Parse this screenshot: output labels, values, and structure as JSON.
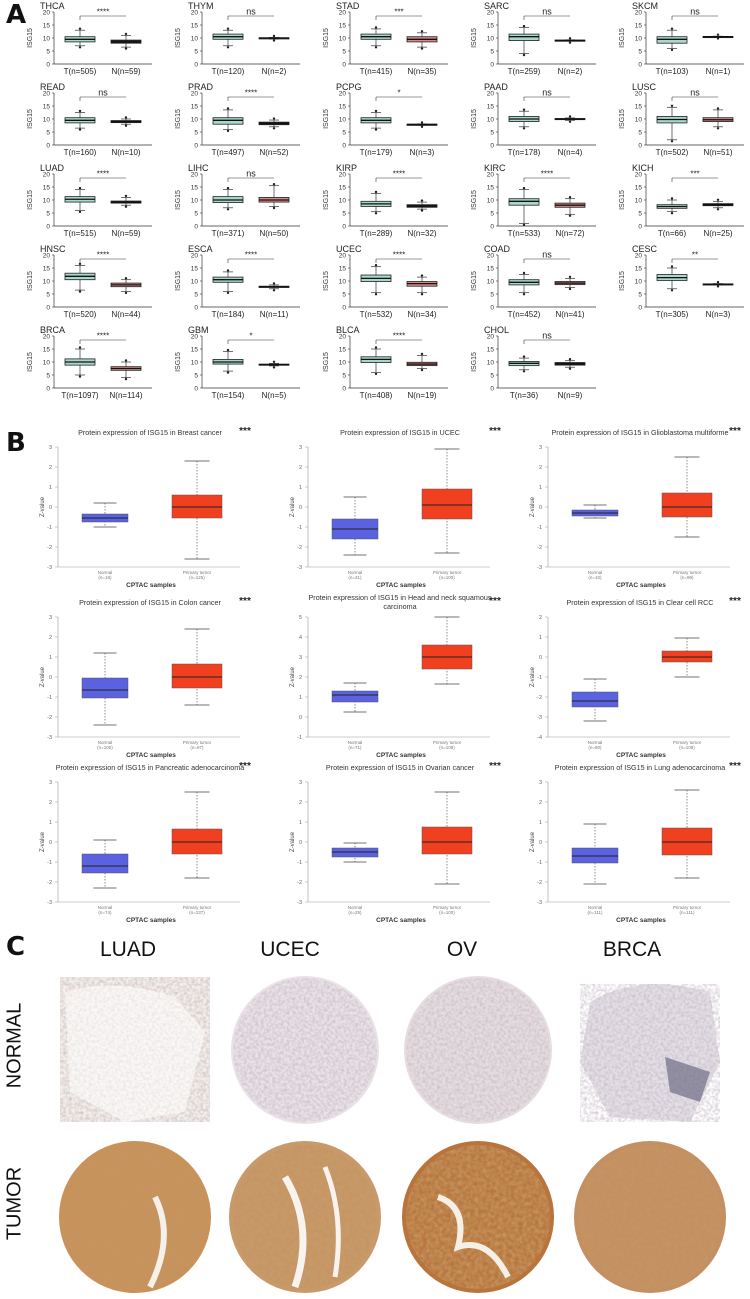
{
  "panel_labels": {
    "a": "A",
    "b": "B",
    "c": "C"
  },
  "panelA": {
    "ylabel": "ISG15",
    "yticks": [
      0,
      5,
      10,
      15,
      20
    ],
    "colors": {
      "tumor": "#a8d8cc",
      "normal": "#d98a8a",
      "normal_small": "#222222"
    },
    "plots": [
      {
        "name": "THCA",
        "tumor_label": "T(n=505)",
        "normal_label": "N(n=59)",
        "sig": "****",
        "t": [
          7,
          8.5,
          9.5,
          10.5,
          13
        ],
        "n": [
          6.5,
          8,
          8.5,
          9.2,
          11
        ]
      },
      {
        "name": "THYM",
        "tumor_label": "T(n=120)",
        "normal_label": "N(n=2)",
        "sig": "ns",
        "t": [
          7,
          9.5,
          10.5,
          11.5,
          13
        ],
        "n": [
          9.6,
          9.8,
          10,
          10.1,
          10.2
        ]
      },
      {
        "name": "STAD",
        "tumor_label": "T(n=415)",
        "normal_label": "N(n=35)",
        "sig": "***",
        "t": [
          7,
          9.5,
          10.5,
          11.5,
          13.5
        ],
        "n": [
          6.5,
          8.5,
          9.5,
          10.5,
          12
        ]
      },
      {
        "name": "SARC",
        "tumor_label": "T(n=259)",
        "normal_label": "N(n=2)",
        "sig": "ns",
        "t": [
          4,
          9,
          10.5,
          11.5,
          14
        ],
        "n": [
          8.8,
          9,
          9.1,
          9.2,
          9.3
        ]
      },
      {
        "name": "SKCM",
        "tumor_label": "T(n=103)",
        "normal_label": "N(n=1)",
        "sig": "ns",
        "t": [
          6,
          8,
          9.5,
          10.5,
          13
        ],
        "n": [
          10.4,
          10.5,
          10.5,
          10.6,
          10.7
        ]
      },
      {
        "name": "READ",
        "tumor_label": "T(n=160)",
        "normal_label": "N(n=10)",
        "sig": "ns",
        "t": [
          6.5,
          8.5,
          9.5,
          10.5,
          12.5
        ],
        "n": [
          8,
          8.6,
          9,
          9.4,
          10
        ]
      },
      {
        "name": "PRAD",
        "tumor_label": "T(n=497)",
        "normal_label": "N(n=52)",
        "sig": "****",
        "t": [
          6,
          8,
          9.5,
          10.5,
          13.5
        ],
        "n": [
          7,
          7.8,
          8.3,
          8.8,
          9.6
        ]
      },
      {
        "name": "PCPG",
        "tumor_label": "T(n=179)",
        "normal_label": "N(n=3)",
        "sig": "*",
        "t": [
          6.5,
          8.5,
          9.5,
          10.5,
          12.5
        ],
        "n": [
          7.6,
          7.8,
          7.9,
          8,
          8.1
        ]
      },
      {
        "name": "PAAD",
        "tumor_label": "T(n=178)",
        "normal_label": "N(n=4)",
        "sig": "ns",
        "t": [
          7,
          9,
          10,
          11,
          13
        ],
        "n": [
          9.5,
          9.8,
          10,
          10.2,
          10.4
        ]
      },
      {
        "name": "LUSC",
        "tumor_label": "T(n=502)",
        "normal_label": "N(n=51)",
        "sig": "ns",
        "t": [
          2,
          8.5,
          9.8,
          11,
          14.5
        ],
        "n": [
          7,
          9,
          9.7,
          10.5,
          13.5
        ]
      },
      {
        "name": "LUAD",
        "tumor_label": "T(n=515)",
        "normal_label": "N(n=59)",
        "sig": "****",
        "t": [
          6,
          9.2,
          10.3,
          11.3,
          14
        ],
        "n": [
          8,
          8.8,
          9.2,
          9.6,
          11
        ]
      },
      {
        "name": "LIHC",
        "tumor_label": "T(n=371)",
        "normal_label": "N(n=50)",
        "sig": "ns",
        "t": [
          7,
          9,
          10,
          11.3,
          14
        ],
        "n": [
          7.5,
          9.2,
          10,
          11,
          15.5
        ]
      },
      {
        "name": "KIRP",
        "tumor_label": "T(n=289)",
        "normal_label": "N(n=32)",
        "sig": "****",
        "t": [
          5.5,
          7.5,
          8.5,
          9.5,
          12.5
        ],
        "n": [
          6.5,
          7.2,
          7.7,
          8.2,
          9.2
        ]
      },
      {
        "name": "KIRC",
        "tumor_label": "T(n=533)",
        "normal_label": "N(n=72)",
        "sig": "****",
        "t": [
          1,
          8,
          9.5,
          10.5,
          14
        ],
        "n": [
          4.5,
          7.2,
          8,
          8.8,
          10.5
        ]
      },
      {
        "name": "KICH",
        "tumor_label": "T(n=66)",
        "normal_label": "N(n=25)",
        "sig": "***",
        "t": [
          5.5,
          6.8,
          7.5,
          8.2,
          10
        ],
        "n": [
          7,
          7.8,
          8.2,
          8.6,
          9.5
        ]
      },
      {
        "name": "HNSC",
        "tumor_label": "T(n=520)",
        "normal_label": "N(n=44)",
        "sig": "****",
        "t": [
          6.5,
          10.5,
          11.8,
          13,
          16
        ],
        "n": [
          6,
          7.8,
          8.5,
          9.2,
          10.5
        ]
      },
      {
        "name": "ESCA",
        "tumor_label": "T(n=184)",
        "normal_label": "N(n=11)",
        "sig": "****",
        "t": [
          6,
          9.5,
          10.5,
          11.5,
          13.5
        ],
        "n": [
          7,
          7.5,
          7.8,
          8,
          8.5
        ]
      },
      {
        "name": "UCEC",
        "tumor_label": "T(n=532)",
        "normal_label": "N(n=34)",
        "sig": "****",
        "t": [
          5.5,
          9.8,
          11,
          12.3,
          15.5
        ],
        "n": [
          5.5,
          8,
          9,
          9.8,
          11.5
        ]
      },
      {
        "name": "COAD",
        "tumor_label": "T(n=452)",
        "normal_label": "N(n=41)",
        "sig": "ns",
        "t": [
          5.5,
          8.5,
          9.5,
          10.5,
          12.5
        ],
        "n": [
          7.5,
          8.6,
          9.2,
          9.8,
          11
        ]
      },
      {
        "name": "CESC",
        "tumor_label": "T(n=305)",
        "normal_label": "N(n=3)",
        "sig": "**",
        "t": [
          7,
          10.2,
          11.3,
          12.5,
          15
        ],
        "n": [
          8.5,
          8.7,
          8.8,
          8.9,
          9
        ]
      },
      {
        "name": "BRCA",
        "tumor_label": "T(n=1097)",
        "normal_label": "N(n=114)",
        "sig": "****",
        "t": [
          5,
          8.8,
          10,
          11.2,
          15
        ],
        "n": [
          4,
          6.8,
          7.5,
          8.2,
          10
        ]
      },
      {
        "name": "GBM",
        "tumor_label": "T(n=154)",
        "normal_label": "N(n=5)",
        "sig": "*",
        "t": [
          6.5,
          9.2,
          10,
          11,
          14
        ],
        "n": [
          8.5,
          8.8,
          9,
          9.2,
          9.5
        ]
      },
      {
        "name": "BLCA",
        "tumor_label": "T(n=408)",
        "normal_label": "N(n=19)",
        "sig": "****",
        "t": [
          6,
          9.8,
          11,
          12,
          15
        ],
        "n": [
          7.5,
          8.6,
          9.2,
          9.9,
          12.5
        ]
      },
      {
        "name": "CHOL",
        "tumor_label": "T(n=36)",
        "normal_label": "N(n=9)",
        "sig": "ns",
        "t": [
          7,
          8.6,
          9.5,
          10.2,
          11.5
        ],
        "n": [
          8,
          8.8,
          9.3,
          9.8,
          10.5
        ]
      }
    ]
  },
  "panelB": {
    "ylabel": "Z-value",
    "xlabel": "CPTAC samples",
    "colors": {
      "normal": "#5b62e0",
      "tumor": "#f04020"
    },
    "plots": [
      {
        "title": "Protein expression of ISG15 in Breast cancer",
        "sig": "***",
        "normal_label": "Normal",
        "normal_n": "(n=18)",
        "tumor_label": "Primary tumor",
        "tumor_n": "(n=125)",
        "ymin": -3,
        "ymax": 3,
        "normal": [
          -1,
          -0.75,
          -0.55,
          -0.35,
          0.2
        ],
        "tumor": [
          -2.6,
          -0.55,
          0,
          0.6,
          2.3
        ]
      },
      {
        "title": "Protein expression of ISG15 in UCEC",
        "sig": "***",
        "normal_label": "Normal",
        "normal_n": "(n=31)",
        "tumor_label": "Primary tumor",
        "tumor_n": "(n=100)",
        "ymin": -3,
        "ymax": 3,
        "normal": [
          -2.4,
          -1.6,
          -1.1,
          -0.6,
          0.5
        ],
        "tumor": [
          -2.3,
          -0.6,
          0.1,
          0.9,
          2.9
        ]
      },
      {
        "title": "Protein expression of ISG15 in Glioblastoma multiforme",
        "sig": "***",
        "normal_label": "Normal",
        "normal_n": "(n=10)",
        "tumor_label": "Primary tumor",
        "tumor_n": "(n=99)",
        "ymin": -3,
        "ymax": 3,
        "normal": [
          -0.55,
          -0.45,
          -0.3,
          -0.15,
          0.1
        ],
        "tumor": [
          -1.5,
          -0.5,
          0,
          0.7,
          2.5
        ]
      },
      {
        "title": "Protein expression of ISG15 in Colon cancer",
        "sig": "***",
        "normal_label": "Normal",
        "normal_n": "(n=100)",
        "tumor_label": "Primary tumor",
        "tumor_n": "(n=97)",
        "ymin": -3,
        "ymax": 3,
        "normal": [
          -2.4,
          -1.05,
          -0.65,
          -0.05,
          1.2
        ],
        "tumor": [
          -1.4,
          -0.55,
          0,
          0.65,
          2.4
        ]
      },
      {
        "title": "Protein expression of ISG15 in Head and neck squamous",
        "title2": "carcinoma",
        "sig": "***",
        "normal_label": "Normal",
        "normal_n": "(n=71)",
        "tumor_label": "Primary tumor",
        "tumor_n": "(n=108)",
        "ymin": -1,
        "ymax": 5,
        "normal": [
          0.25,
          0.75,
          1.1,
          1.3,
          1.7
        ],
        "tumor": [
          1.65,
          2.4,
          3,
          3.6,
          5
        ]
      },
      {
        "title": "Protein expression of ISG15 in Clear cell RCC",
        "sig": "***",
        "normal_label": "Normal",
        "normal_n": "(n=80)",
        "tumor_label": "Primary tumor",
        "tumor_n": "(n=108)",
        "ymin": -4,
        "ymax": 2,
        "normal": [
          -3.2,
          -2.5,
          -2.2,
          -1.75,
          -1.1
        ],
        "tumor": [
          -1,
          -0.25,
          0,
          0.3,
          0.95
        ]
      },
      {
        "title": "Protein expression of ISG15 in Pancreatic adenocarcinoma",
        "sig": "***",
        "normal_label": "Normal",
        "normal_n": "(n=74)",
        "tumor_label": "Primary tumor",
        "tumor_n": "(n=137)",
        "ymin": -3,
        "ymax": 3,
        "normal": [
          -2.3,
          -1.55,
          -1.2,
          -0.6,
          0.1
        ],
        "tumor": [
          -1.8,
          -0.6,
          0,
          0.65,
          2.5
        ]
      },
      {
        "title": "Protein expression of ISG15 in Ovarian cancer",
        "sig": "***",
        "normal_label": "Normal",
        "normal_n": "(n=25)",
        "tumor_label": "Primary tumor",
        "tumor_n": "(n=100)",
        "ymin": -3,
        "ymax": 3,
        "normal": [
          -1,
          -0.75,
          -0.5,
          -0.3,
          -0.05
        ],
        "tumor": [
          -2.1,
          -0.6,
          0,
          0.75,
          2.5
        ]
      },
      {
        "title": "Protein expression of ISG15 in Lung adenocarcinoma",
        "sig": "***",
        "normal_label": "Normal",
        "normal_n": "(n=111)",
        "tumor_label": "Primary tumor",
        "tumor_n": "(n=111)",
        "ymin": -3,
        "ymax": 3,
        "normal": [
          -2.1,
          -1.05,
          -0.7,
          -0.3,
          0.9
        ],
        "tumor": [
          -1.8,
          -0.65,
          0,
          0.7,
          2.6
        ]
      }
    ]
  },
  "panelC": {
    "columns": [
      "LUAD",
      "UCEC",
      "OV",
      "BRCA"
    ],
    "rows": [
      "NORMAL",
      "TUMOR"
    ]
  }
}
